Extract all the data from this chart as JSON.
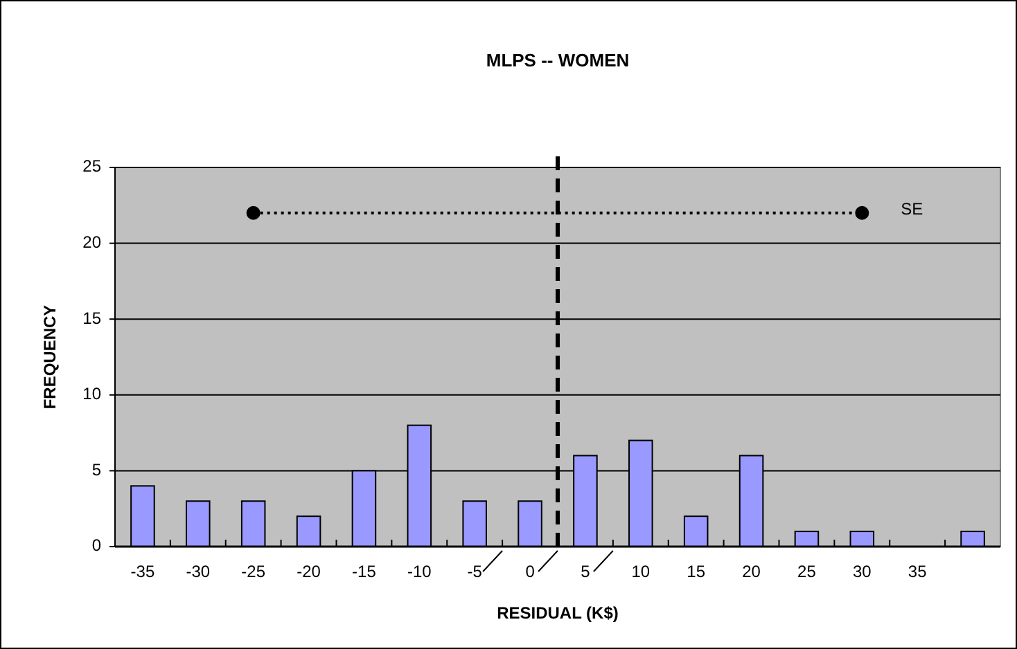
{
  "chart_data": {
    "type": "bar",
    "title": "MLPS -- WOMEN",
    "xlabel": "RESIDUAL (K$)",
    "ylabel": "FREQUENCY",
    "x": [
      -35,
      -30,
      -25,
      -20,
      -15,
      -10,
      -5,
      0,
      5,
      10,
      15,
      20,
      25,
      30,
      35,
      40
    ],
    "xlim": [
      -37.5,
      42.5
    ],
    "xticks": [
      -35,
      -30,
      -25,
      -20,
      -15,
      -10,
      -5,
      0,
      5,
      10,
      15,
      20,
      25,
      30,
      35
    ],
    "ylim": [
      0,
      25
    ],
    "yticks": [
      0,
      5,
      10,
      15,
      20,
      25
    ],
    "grid": "y",
    "series": [
      {
        "color": "#9999ff",
        "values": [
          4,
          3,
          3,
          2,
          5,
          8,
          3,
          3,
          6,
          7,
          2,
          6,
          1,
          1,
          0,
          1
        ]
      },
      {
        "type": "line",
        "name": "SE",
        "color": "#000000",
        "x": [
          -25,
          30
        ],
        "values": [
          22,
          22
        ],
        "marker": "circle",
        "line_style": "dotted"
      }
    ],
    "ref_lines": [
      {
        "axis": "x",
        "value": 2.5,
        "color": "#000000",
        "line_style": "dashed"
      }
    ]
  }
}
